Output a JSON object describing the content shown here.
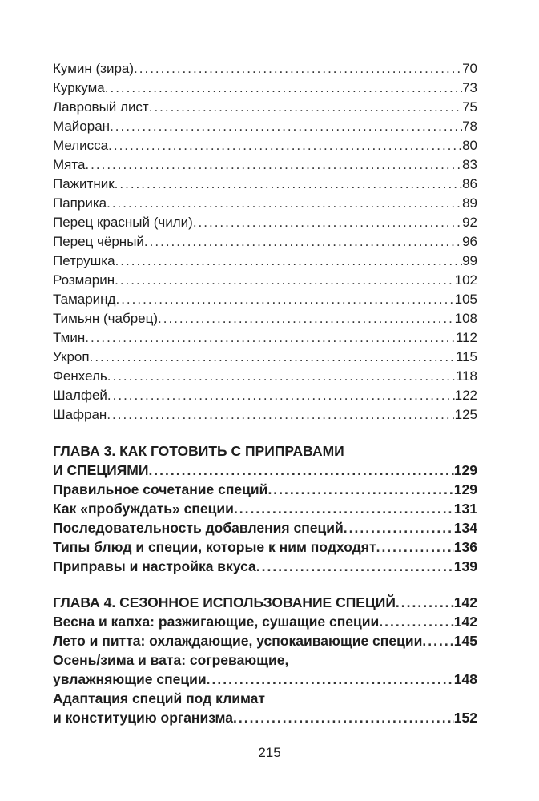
{
  "sections": [
    {
      "entries": [
        {
          "lines": [
            "Кумин (зира)"
          ],
          "page": "70"
        },
        {
          "lines": [
            "Куркума"
          ],
          "page": "73"
        },
        {
          "lines": [
            "Лавровый лист"
          ],
          "page": "75"
        },
        {
          "lines": [
            "Майоран"
          ],
          "page": "78"
        },
        {
          "lines": [
            "Мелисса"
          ],
          "page": "80"
        },
        {
          "lines": [
            "Мята"
          ],
          "page": "83"
        },
        {
          "lines": [
            "Пажитник"
          ],
          "page": "86"
        },
        {
          "lines": [
            "Паприка"
          ],
          "page": "89"
        },
        {
          "lines": [
            "Перец красный (чили)"
          ],
          "page": "92"
        },
        {
          "lines": [
            "Перец чёрный"
          ],
          "page": "96"
        },
        {
          "lines": [
            "Петрушка"
          ],
          "page": "99"
        },
        {
          "lines": [
            "Розмарин"
          ],
          "page": "102"
        },
        {
          "lines": [
            "Тамаринд"
          ],
          "page": "105"
        },
        {
          "lines": [
            "Тимьян (чабрец)"
          ],
          "page": "108"
        },
        {
          "lines": [
            "Тмин"
          ],
          "page": "112"
        },
        {
          "lines": [
            "Укроп"
          ],
          "page": "115"
        },
        {
          "lines": [
            "Фенхель"
          ],
          "page": "118"
        },
        {
          "lines": [
            "Шалфей"
          ],
          "page": "122"
        },
        {
          "lines": [
            "Шафран"
          ],
          "page": "125"
        }
      ]
    },
    {
      "chapter": {
        "lines": [
          "ГЛАВА 3. КАК ГОТОВИТЬ С ПРИПРАВАМИ",
          "И СПЕЦИЯМИ"
        ],
        "page": "129"
      },
      "entries": [
        {
          "lines": [
            "Правильное сочетание специй"
          ],
          "page": "129"
        },
        {
          "lines": [
            "Как «пробуждать» специи"
          ],
          "page": "131"
        },
        {
          "lines": [
            "Последовательность добавления специй"
          ],
          "page": "134"
        },
        {
          "lines": [
            "Типы блюд и специи, которые к ним подходят"
          ],
          "page": "136"
        },
        {
          "lines": [
            "Приправы и настройка вкуса"
          ],
          "page": "139"
        }
      ]
    },
    {
      "chapter": {
        "lines": [
          "ГЛАВА 4. СЕЗОННОЕ ИСПОЛЬЗОВАНИЕ СПЕЦИЙ"
        ],
        "page": "142"
      },
      "entries": [
        {
          "lines": [
            "Весна и капха: разжигающие, сушащие специи"
          ],
          "page": "142"
        },
        {
          "lines": [
            "Лето и питта: охлаждающие, успокаивающие специи"
          ],
          "page": "145"
        },
        {
          "lines": [
            "Осень/зима и вата: согревающие,",
            "увлажняющие специи"
          ],
          "page": "148"
        },
        {
          "lines": [
            "Адаптация специй под климат",
            "и конституцию организма"
          ],
          "page": "152"
        }
      ]
    }
  ],
  "page_number": "215"
}
